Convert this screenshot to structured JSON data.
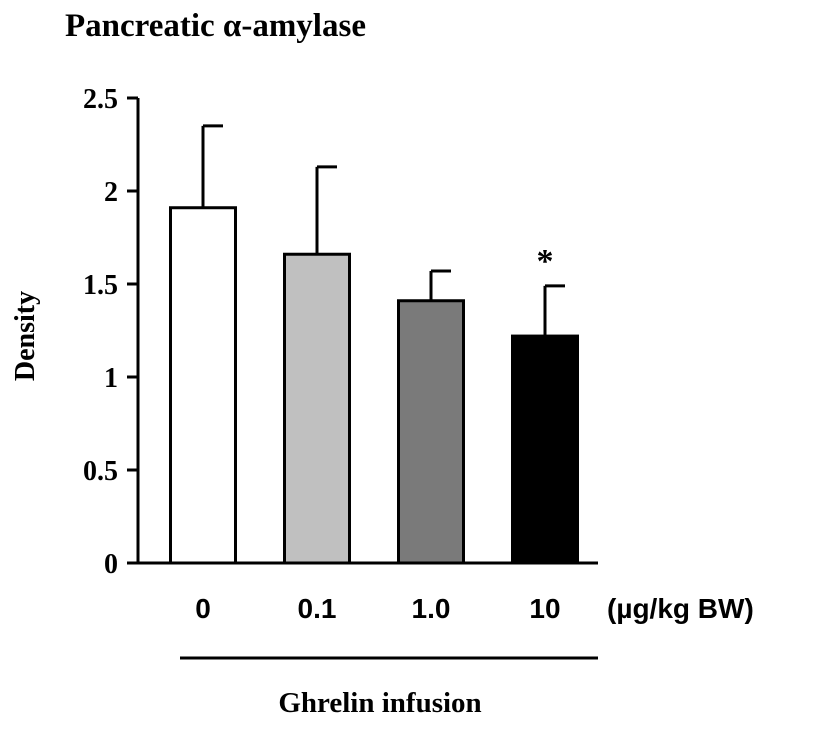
{
  "chart_data": {
    "type": "bar",
    "title": "Pancreatic α-amylase",
    "ylabel": "Density",
    "xlabel": "Ghrelin infusion",
    "x_unit": "(µg/kg BW)",
    "categories": [
      "0",
      "0.1",
      "1.0",
      "10"
    ],
    "values": [
      1.91,
      1.66,
      1.41,
      1.22
    ],
    "error_upper": [
      0.44,
      0.47,
      0.16,
      0.27
    ],
    "significance": [
      "",
      "",
      "",
      "*"
    ],
    "bar_colors": [
      "#ffffff",
      "#c0c0c0",
      "#7a7a7a",
      "#000000"
    ],
    "ylim": [
      0,
      2.5
    ],
    "yticks": [
      "0",
      "0.5",
      "1",
      "1.5",
      "2",
      "2.5"
    ],
    "grid": false,
    "legend": "none"
  }
}
